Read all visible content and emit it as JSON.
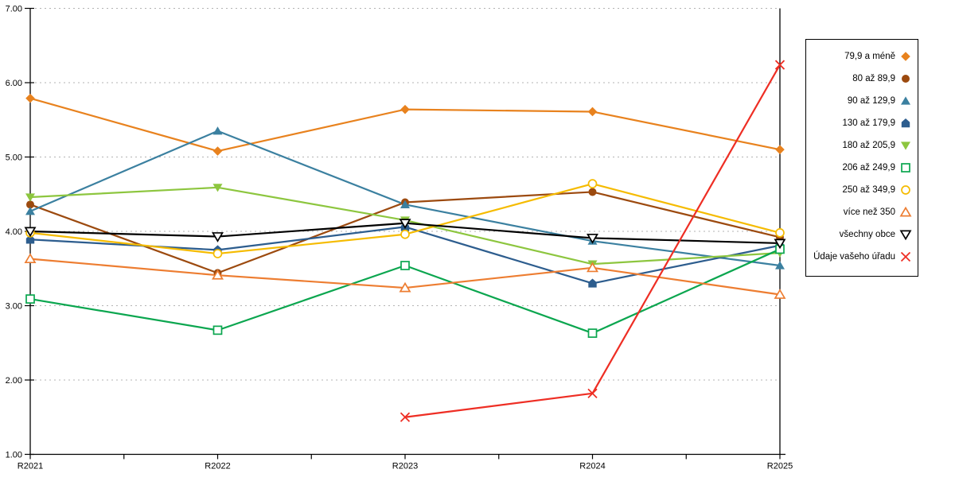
{
  "chart_data": {
    "type": "line",
    "title": "",
    "xlabel": "",
    "ylabel": "",
    "categories": [
      "R2021",
      "R2022",
      "R2023",
      "R2024",
      "R2025"
    ],
    "ylim": [
      1,
      7
    ],
    "y_ticks": [
      "1.00",
      "2.00",
      "3.00",
      "4.00",
      "5.00",
      "6.00",
      "7.00"
    ],
    "grid": "horizontal-dotted",
    "legend_position": "right",
    "series": [
      {
        "name": "79,9 a méně",
        "marker": "diamond",
        "fill": "solid",
        "color": "#e8821e",
        "values": [
          5.79,
          5.08,
          5.64,
          5.61,
          5.1
        ]
      },
      {
        "name": "80 až 89,9",
        "marker": "circle",
        "fill": "solid",
        "color": "#9c4a0f",
        "values": [
          4.36,
          3.44,
          4.39,
          4.53,
          3.92
        ]
      },
      {
        "name": "90 až 129,9",
        "marker": "triangle-up",
        "fill": "solid",
        "color": "#3b80a0",
        "values": [
          4.27,
          5.35,
          4.36,
          3.87,
          3.54
        ]
      },
      {
        "name": "130 až 179,9",
        "marker": "pentagon",
        "fill": "solid",
        "color": "#2d5d8e",
        "values": [
          3.89,
          3.75,
          4.06,
          3.3,
          3.81
        ]
      },
      {
        "name": "180 až 205,9",
        "marker": "triangle-down",
        "fill": "solid",
        "color": "#8dc63f",
        "values": [
          4.46,
          4.59,
          4.15,
          3.56,
          3.71
        ]
      },
      {
        "name": "206 až 249,9",
        "marker": "square",
        "fill": "hollow",
        "color": "#0ba64f",
        "values": [
          3.09,
          2.67,
          3.54,
          2.63,
          3.76
        ]
      },
      {
        "name": "250 až 349,9",
        "marker": "circle",
        "fill": "hollow",
        "color": "#f5bb00",
        "values": [
          3.98,
          3.7,
          3.96,
          4.64,
          3.98
        ]
      },
      {
        "name": "více než 350",
        "marker": "triangle-up",
        "fill": "hollow",
        "color": "#ed7d31",
        "values": [
          3.63,
          3.41,
          3.24,
          3.51,
          3.15
        ]
      },
      {
        "name": "všechny obce",
        "marker": "triangle-down",
        "fill": "hollow",
        "color": "#000000",
        "values": [
          4.0,
          3.93,
          4.11,
          3.91,
          3.84
        ]
      },
      {
        "name": "Údaje vašeho úřadu",
        "marker": "x",
        "fill": "hollow",
        "color": "#ee2e24",
        "values": [
          null,
          null,
          1.5,
          1.82,
          6.24
        ]
      }
    ]
  }
}
